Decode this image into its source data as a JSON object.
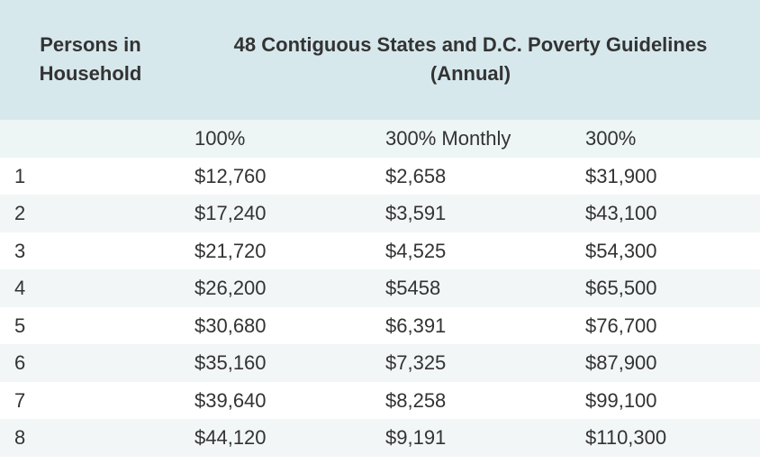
{
  "header": {
    "persons_line1": "Persons in",
    "persons_line2": "Household",
    "guidelines_line1": "48 Contiguous States and D.C. Poverty Guidelines",
    "guidelines_line2": "(Annual)"
  },
  "subheader": {
    "col0": "",
    "col1": "100%",
    "col2": "300% Monthly",
    "col3": "300%"
  },
  "rows": [
    {
      "persons": "1",
      "pct100": "$12,760",
      "monthly300": "$2,658",
      "pct300": "$31,900"
    },
    {
      "persons": "2",
      "pct100": "$17,240",
      "monthly300": "$3,591",
      "pct300": "$43,100"
    },
    {
      "persons": "3",
      "pct100": "$21,720",
      "monthly300": "$4,525",
      "pct300": "$54,300"
    },
    {
      "persons": "4",
      "pct100": "$26,200",
      "monthly300": "$5458",
      "pct300": "$65,500"
    },
    {
      "persons": "5",
      "pct100": "$30,680",
      "monthly300": "$6,391",
      "pct300": "$76,700"
    },
    {
      "persons": "6",
      "pct100": "$35,160",
      "monthly300": "$7,325",
      "pct300": "$87,900"
    },
    {
      "persons": "7",
      "pct100": "$39,640",
      "monthly300": "$8,258",
      "pct300": "$99,100"
    },
    {
      "persons": "8",
      "pct100": "$44,120",
      "monthly300": "$9,191",
      "pct300": "$110,300"
    }
  ]
}
